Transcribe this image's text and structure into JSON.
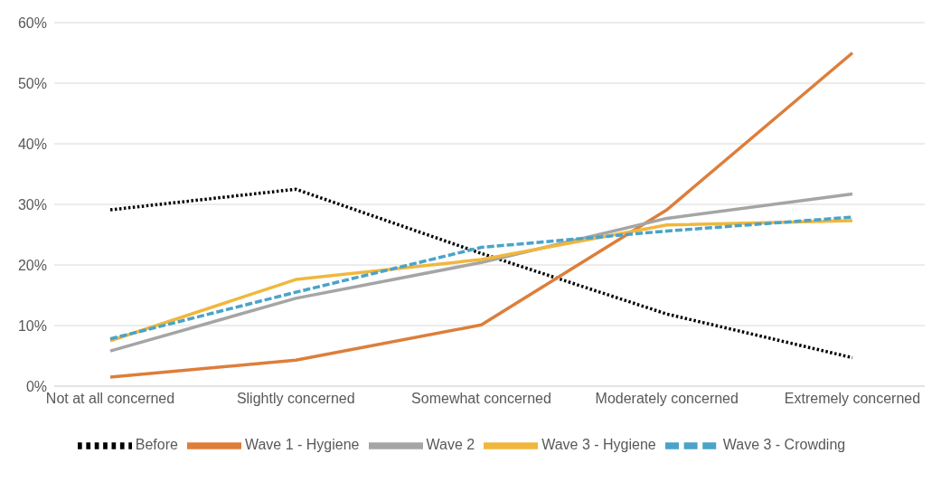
{
  "chart_data": {
    "type": "line",
    "categories": [
      "Not at all concerned",
      "Slightly concerned",
      "Somewhat concerned",
      "Moderately concerned",
      "Extremely concerned"
    ],
    "series": [
      {
        "name": "Before",
        "color": "#000000",
        "line_style": "dotted",
        "values": [
          29.1,
          32.5,
          21.9,
          11.9,
          4.7
        ]
      },
      {
        "name": "Wave 1 - Hygiene",
        "color": "#dd7e3b",
        "line_style": "solid",
        "values": [
          1.5,
          4.3,
          10.1,
          29.1,
          55
        ]
      },
      {
        "name": "Wave 2",
        "color": "#a5a5a5",
        "line_style": "solid",
        "values": [
          5.8,
          14.5,
          20.4,
          27.7,
          31.7
        ]
      },
      {
        "name": "Wave 3 - Hygiene",
        "color": "#f0b73c",
        "line_style": "solid",
        "values": [
          7.5,
          17.6,
          20.9,
          26.6,
          27.3
        ]
      },
      {
        "name": "Wave 3 - Crowding",
        "color": "#4aa3c9",
        "line_style": "dashed",
        "values": [
          7.8,
          15.5,
          22.9,
          25.6,
          27.9
        ]
      }
    ],
    "ylim": [
      0,
      60
    ],
    "yticks": [
      {
        "value": 0,
        "label": "0%"
      },
      {
        "value": 10,
        "label": "10%"
      },
      {
        "value": 20,
        "label": "20%"
      },
      {
        "value": 30,
        "label": "30%"
      },
      {
        "value": 40,
        "label": "40%"
      },
      {
        "value": 50,
        "label": "50%"
      },
      {
        "value": 60,
        "label": "60%"
      }
    ],
    "grid": "y",
    "legend": "bottom",
    "marker": "none"
  }
}
